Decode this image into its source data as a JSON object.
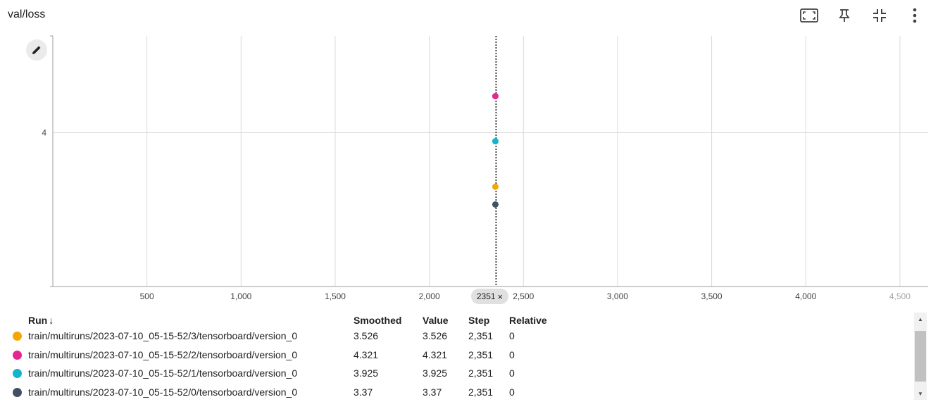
{
  "card": {
    "title": "val/loss",
    "toolbar": [
      {
        "name": "fit-domain-icon"
      },
      {
        "name": "pin-icon"
      },
      {
        "name": "collapse-icon"
      },
      {
        "name": "more-vert-icon"
      }
    ]
  },
  "chart_data": {
    "type": "scatter",
    "title": "val/loss",
    "xlabel": "",
    "ylabel": "",
    "xlim": [
      0,
      4650
    ],
    "ylim": [
      2.65,
      4.85
    ],
    "x_ticks": [
      500,
      1000,
      1500,
      2000,
      2500,
      3000,
      3500,
      4000,
      4500
    ],
    "x_tick_labels": [
      "500",
      "1,000",
      "1,500",
      "2,000",
      "2,500",
      "3,000",
      "3,500",
      "4,000",
      "4,500"
    ],
    "y_ticks": [
      4
    ],
    "y_tick_labels": [
      "4"
    ],
    "grid": true,
    "hover_step": 2351,
    "hover_step_label": "2351",
    "series": [
      {
        "name": "train/multiruns/2023-07-10_05-15-52/3/tensorboard/version_0",
        "color": "#f4a701",
        "x": [
          2351
        ],
        "y": [
          3.526
        ]
      },
      {
        "name": "train/multiruns/2023-07-10_05-15-52/2/tensorboard/version_0",
        "color": "#e52592",
        "x": [
          2351
        ],
        "y": [
          4.321
        ]
      },
      {
        "name": "train/multiruns/2023-07-10_05-15-52/1/tensorboard/version_0",
        "color": "#12b5cb",
        "x": [
          2351
        ],
        "y": [
          3.925
        ]
      },
      {
        "name": "train/multiruns/2023-07-10_05-15-52/0/tensorboard/version_0",
        "color": "#425066",
        "x": [
          2351
        ],
        "y": [
          3.37
        ]
      }
    ]
  },
  "table": {
    "headers": {
      "run": "Run",
      "sort_icon": "↓",
      "smoothed": "Smoothed",
      "value": "Value",
      "step": "Step",
      "relative": "Relative"
    },
    "rows": [
      {
        "color": "#f4a701",
        "run": "train/multiruns/2023-07-10_05-15-52/3/tensorboard/version_0",
        "smoothed": "3.526",
        "value": "3.526",
        "step": "2,351",
        "relative": "0"
      },
      {
        "color": "#e52592",
        "run": "train/multiruns/2023-07-10_05-15-52/2/tensorboard/version_0",
        "smoothed": "4.321",
        "value": "4.321",
        "step": "2,351",
        "relative": "0"
      },
      {
        "color": "#12b5cb",
        "run": "train/multiruns/2023-07-10_05-15-52/1/tensorboard/version_0",
        "smoothed": "3.925",
        "value": "3.925",
        "step": "2,351",
        "relative": "0"
      },
      {
        "color": "#425066",
        "run": "train/multiruns/2023-07-10_05-15-52/0/tensorboard/version_0",
        "smoothed": "3.37",
        "value": "3.37",
        "step": "2,351",
        "relative": "0"
      }
    ]
  },
  "step_chip": {
    "label": "2351",
    "close": "×"
  }
}
